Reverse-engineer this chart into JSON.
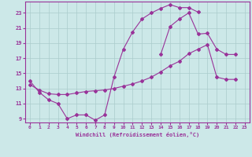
{
  "xlabel": "Windchill (Refroidissement éolien,°C)",
  "background_color": "#cce8e8",
  "grid_color": "#aacccc",
  "line_color": "#993399",
  "xlim": [
    -0.5,
    23.5
  ],
  "ylim": [
    8.5,
    24.5
  ],
  "xticks": [
    0,
    1,
    2,
    3,
    4,
    5,
    6,
    7,
    8,
    9,
    10,
    11,
    12,
    13,
    14,
    15,
    16,
    17,
    18,
    19,
    20,
    21,
    22,
    23
  ],
  "yticks": [
    9,
    11,
    13,
    15,
    17,
    19,
    21,
    23
  ],
  "series1_x": [
    0,
    1,
    2,
    3,
    4,
    5,
    6,
    7,
    8,
    9,
    10,
    11,
    12,
    13,
    14,
    15,
    16,
    17,
    18
  ],
  "series1_y": [
    14.0,
    12.5,
    11.5,
    11.0,
    9.0,
    9.5,
    9.5,
    8.8,
    9.5,
    14.5,
    18.2,
    20.5,
    22.2,
    23.0,
    23.6,
    24.1,
    23.7,
    23.7,
    23.1
  ],
  "series2_x": [
    14,
    15,
    16,
    17,
    18,
    19,
    20,
    21,
    22
  ],
  "series2_y": [
    17.5,
    21.2,
    22.2,
    23.0,
    20.2,
    20.3,
    18.2,
    17.5,
    17.5
  ],
  "series3_x": [
    0,
    1,
    2,
    3,
    4,
    5,
    6,
    7,
    8,
    9,
    10,
    11,
    12,
    13,
    14,
    15,
    16,
    17,
    18,
    19,
    20,
    21,
    22
  ],
  "series3_y": [
    13.5,
    12.8,
    12.3,
    12.2,
    12.2,
    12.4,
    12.6,
    12.7,
    12.8,
    13.0,
    13.3,
    13.6,
    14.0,
    14.5,
    15.2,
    16.0,
    16.6,
    17.6,
    18.2,
    18.8,
    14.5,
    14.2,
    14.2
  ]
}
